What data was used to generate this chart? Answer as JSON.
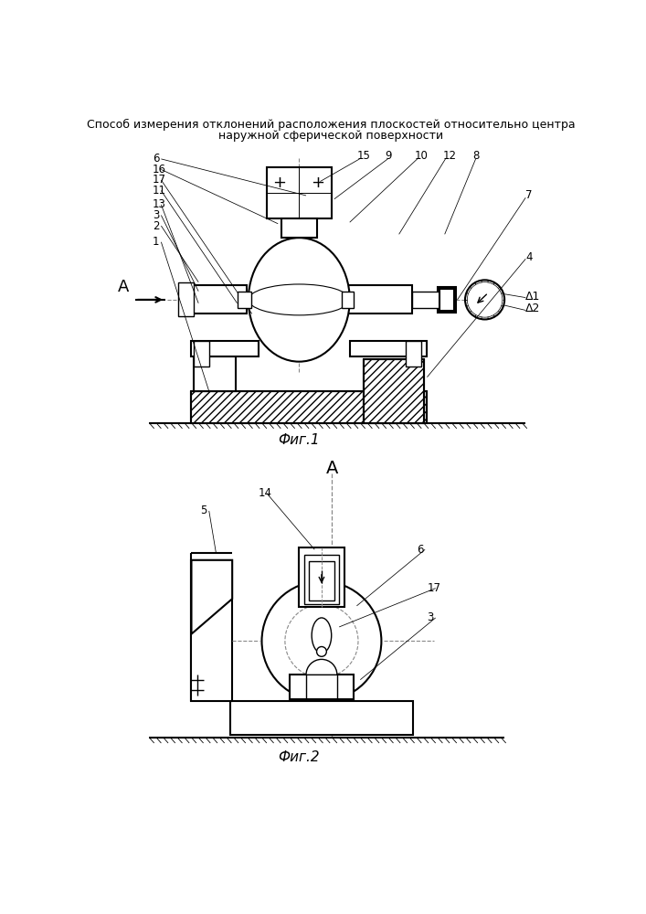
{
  "title_line1": "Способ измерения отклонений расположения плоскостей относительно центра",
  "title_line2": "наружной сферической поверхности",
  "fig1_label": "Фиг.1",
  "fig2_label": "Фиг.2",
  "bg_color": "#ffffff",
  "line_color": "#000000",
  "dash_color": "#aaaaaa",
  "font_size_title": 9,
  "font_size_label": 11,
  "font_size_num": 8.5
}
